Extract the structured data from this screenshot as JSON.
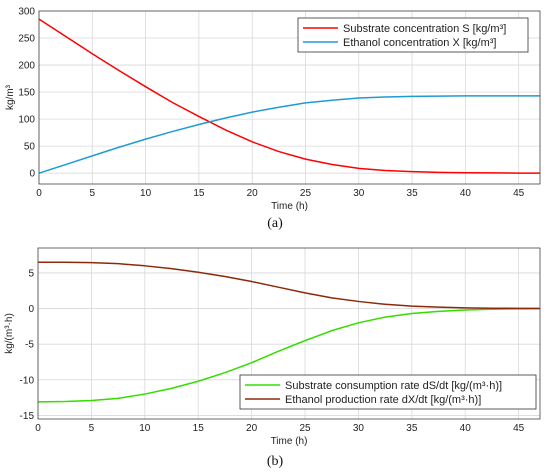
{
  "chart_data": [
    {
      "type": "line",
      "panel_label": "(a)",
      "xlabel": "Time (h)",
      "ylabel": "kg/m³",
      "xlim": [
        0,
        47
      ],
      "ylim": [
        -20,
        300
      ],
      "xticks": [
        0,
        5,
        10,
        15,
        20,
        25,
        30,
        35,
        40,
        45
      ],
      "yticks": [
        0,
        50,
        100,
        150,
        200,
        250,
        300
      ],
      "grid": true,
      "legend_position": "top-right",
      "x": [
        0,
        2.5,
        5,
        7.5,
        10,
        12.5,
        15,
        17.5,
        20,
        22.5,
        25,
        27.5,
        30,
        32.5,
        35,
        37.5,
        40,
        42.5,
        45,
        47
      ],
      "series": [
        {
          "name": "Substrate concentration S [kg/m³]",
          "color": "#ff0000",
          "values": [
            285,
            253,
            221,
            190,
            160,
            131,
            105,
            80,
            58,
            40,
            26,
            16,
            9,
            5,
            3,
            1.6,
            0.9,
            0.5,
            0.2,
            0.1
          ]
        },
        {
          "name": "Ethanol concentration X [kg/m³]",
          "color": "#1f9bd4",
          "values": [
            0,
            16,
            32,
            48,
            63,
            77,
            90,
            102,
            113,
            122,
            130,
            135,
            139,
            141,
            142,
            142.5,
            143,
            143,
            143,
            143
          ]
        }
      ]
    },
    {
      "type": "line",
      "panel_label": "(b)",
      "xlabel": "Time (h)",
      "ylabel": "kg/(m³·h)",
      "xlim": [
        0,
        47
      ],
      "ylim": [
        -15.5,
        8.5
      ],
      "xticks": [
        0,
        5,
        10,
        15,
        20,
        25,
        30,
        35,
        40,
        45
      ],
      "yticks": [
        -15,
        -10,
        -5,
        0,
        5
      ],
      "grid": true,
      "legend_position": "bottom-right",
      "x": [
        0,
        2.5,
        5,
        7.5,
        10,
        12.5,
        15,
        17.5,
        20,
        22.5,
        25,
        27.5,
        30,
        32.5,
        35,
        37.5,
        40,
        42.5,
        45,
        47
      ],
      "series": [
        {
          "name": "Substrate consumption rate dS/dt [kg/(m³·h)]",
          "color": "#33dd00",
          "values": [
            -13.1,
            -13.05,
            -12.9,
            -12.6,
            -12.0,
            -11.2,
            -10.2,
            -9.0,
            -7.6,
            -6.0,
            -4.5,
            -3.1,
            -2.0,
            -1.2,
            -0.7,
            -0.4,
            -0.2,
            -0.1,
            -0.05,
            -0.03
          ]
        },
        {
          "name": "Ethanol production rate dX/dt [kg/(m³·h)]",
          "color": "#8b2a0a",
          "values": [
            6.5,
            6.5,
            6.45,
            6.3,
            6.0,
            5.6,
            5.1,
            4.5,
            3.8,
            3.0,
            2.2,
            1.5,
            1.0,
            0.6,
            0.35,
            0.2,
            0.1,
            0.05,
            0.03,
            0.02
          ]
        }
      ]
    }
  ]
}
